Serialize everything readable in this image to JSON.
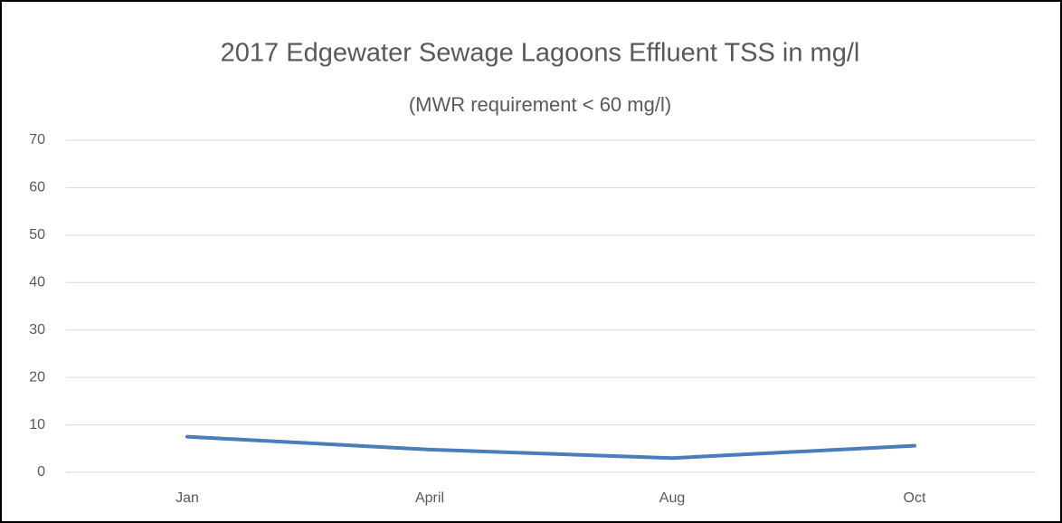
{
  "chart_data": {
    "type": "line",
    "title": "2017 Edgewater Sewage Lagoons Effluent TSS in mg/l",
    "subtitle": "(MWR requirement < 60 mg/l)",
    "categories": [
      "Jan",
      "April",
      "Aug",
      "Oct"
    ],
    "series": [
      {
        "name": "TSS",
        "color": "#4a7ebb",
        "values": [
          7.5,
          4.8,
          3,
          5.6
        ]
      }
    ],
    "ylim": [
      0,
      70
    ],
    "yticks": [
      0,
      10,
      20,
      30,
      40,
      50,
      60,
      70
    ],
    "grid": true
  }
}
